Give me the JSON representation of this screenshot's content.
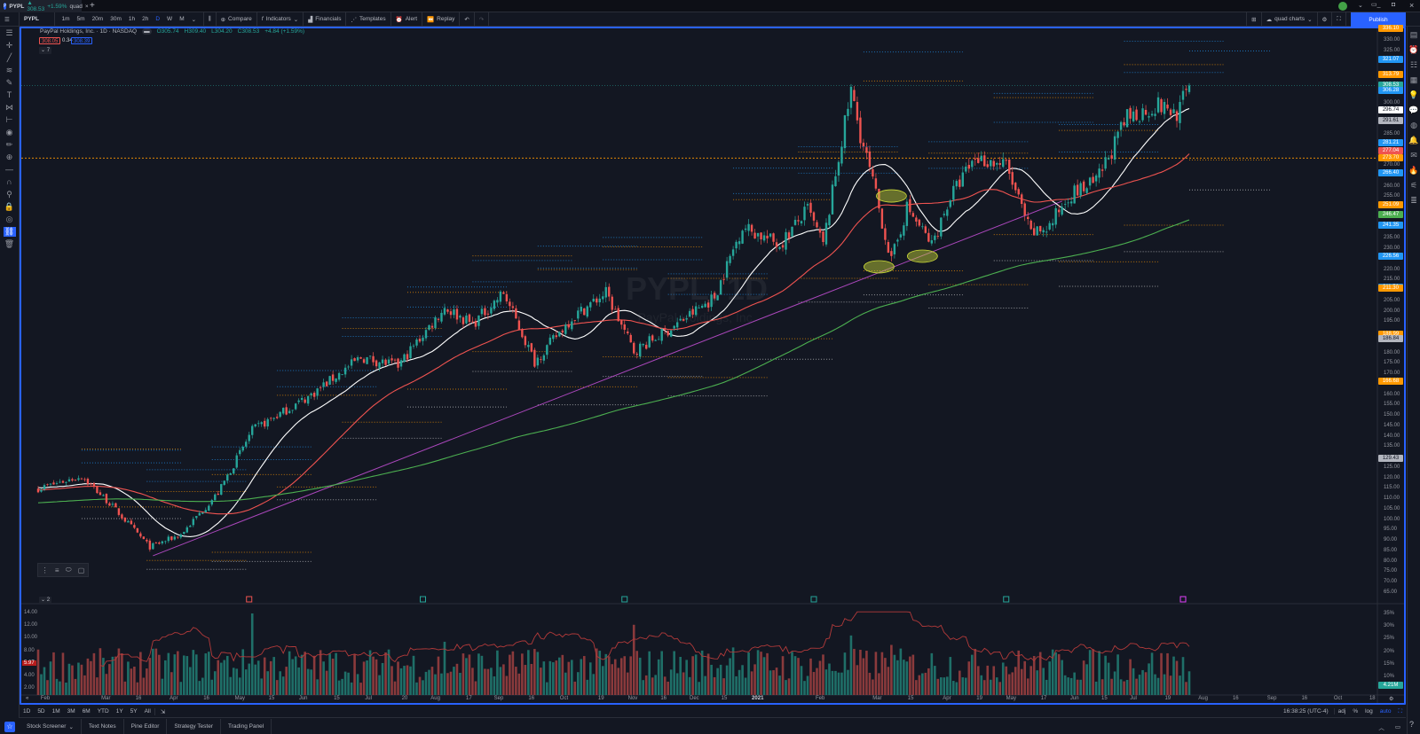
{
  "tab": {
    "symbol": "PYPL",
    "price": "308.53",
    "change": "+1.59%",
    "layout": "quad"
  },
  "toolbar": {
    "symbol": "PYPL",
    "timeframes": [
      "1m",
      "5m",
      "20m",
      "30m",
      "1h",
      "2h",
      "D",
      "W",
      "M"
    ],
    "compare": "Compare",
    "indicators": "Indicators",
    "financials": "Financials",
    "templates": "Templates",
    "alert": "Alert",
    "replay": "Replay",
    "layout_name": "quad charts",
    "publish": "Publish"
  },
  "legend": {
    "title": "PayPal Holdings, Inc. · 1D · NASDAQ",
    "o": "O305.74",
    "h": "H309.40",
    "l": "L304.20",
    "c": "C308.53",
    "chg": "+4.84 (+1.59%)",
    "bid": "308.05",
    "spread": "0.34",
    "ask": "308.39",
    "indicators_toggle": "⌄ 7",
    "volume_toggle": "⌄ 2"
  },
  "watermark": {
    "symbol": "PYPL, 1D",
    "name": "PayPal Holdings, Inc."
  },
  "price_axis": {
    "ticks": [
      "335.00",
      "330.00",
      "325.00",
      "320.00",
      "315.00",
      "310.00",
      "305.00",
      "300.00",
      "295.00",
      "290.00",
      "285.00",
      "280.00",
      "275.00",
      "270.00",
      "265.00",
      "260.00",
      "255.00",
      "250.00",
      "245.00",
      "240.00",
      "235.00",
      "230.00",
      "225.00",
      "220.00",
      "215.00",
      "210.00",
      "205.00",
      "200.00",
      "195.00",
      "190.00",
      "185.00",
      "180.00",
      "175.00",
      "170.00",
      "165.00",
      "160.00",
      "155.00",
      "150.00",
      "145.00",
      "140.00",
      "135.00",
      "130.00",
      "125.00",
      "120.00",
      "115.00",
      "110.00",
      "105.00",
      "100.00",
      "95.00",
      "90.00",
      "85.00",
      "80.00",
      "75.00",
      "70.00",
      "65.00"
    ],
    "badges": [
      {
        "text": "336.10",
        "color": "#ff9800"
      },
      {
        "text": "321.07",
        "color": "#2196f3"
      },
      {
        "text": "313.79",
        "color": "#ff9800"
      },
      {
        "text": "308.53",
        "color": "#26a69a"
      },
      {
        "text": "306.28",
        "color": "#2196f3"
      },
      {
        "text": "296.74",
        "color": "#ffffff"
      },
      {
        "text": "291.61",
        "color": "#b2b5be"
      },
      {
        "text": "281.21",
        "color": "#2196f3"
      },
      {
        "text": "277.04",
        "color": "#ef5350"
      },
      {
        "text": "273.70",
        "color": "#ff9800"
      },
      {
        "text": "266.40",
        "color": "#2196f3"
      },
      {
        "text": "251.09",
        "color": "#ff9800"
      },
      {
        "text": "246.47",
        "color": "#4caf50"
      },
      {
        "text": "241.35",
        "color": "#2196f3"
      },
      {
        "text": "226.56",
        "color": "#2196f3"
      },
      {
        "text": "211.76",
        "color": "#2196f3"
      },
      {
        "text": "211.30",
        "color": "#ff9800"
      },
      {
        "text": "188.99",
        "color": "#ff9800"
      },
      {
        "text": "186.84",
        "color": "#b2b5be"
      },
      {
        "text": "166.68",
        "color": "#ff9800"
      },
      {
        "text": "129.43",
        "color": "#b2b5be"
      }
    ]
  },
  "volume_axis": {
    "left_ticks": [
      "14.00",
      "12.00",
      "10.00",
      "8.00",
      "4.00",
      "2.00"
    ],
    "left_badge": "5.97",
    "right_ticks": [
      "35%",
      "30%",
      "25%",
      "20%",
      "15%",
      "10%"
    ],
    "right_badge": "4.21M"
  },
  "date_axis": [
    "Feb",
    "Mar",
    "16",
    "Apr",
    "16",
    "May",
    "15",
    "Jun",
    "15",
    "Jul",
    "20",
    "Aug",
    "17",
    "Sep",
    "16",
    "Oct",
    "19",
    "Nov",
    "16",
    "Dec",
    "15",
    "2021",
    "Feb",
    "Mar",
    "15",
    "Apr",
    "19",
    "May",
    "17",
    "Jun",
    "15",
    "Jul",
    "19",
    "Aug",
    "16",
    "Sep",
    "16",
    "Oct",
    "18"
  ],
  "range_bar": {
    "ranges": [
      "1D",
      "5D",
      "1M",
      "3M",
      "6M",
      "YTD",
      "1Y",
      "5Y",
      "All"
    ],
    "clock": "16:38:25 (UTC-4)",
    "adj": "adj",
    "pct": "%",
    "log": "log",
    "auto": "auto"
  },
  "bottom_tabs": [
    "Stock Screener",
    "Text Notes",
    "Pine Editor",
    "Strategy Tester",
    "Trading Panel"
  ],
  "chart_data": {
    "type": "candlestick",
    "symbol": "PYPL",
    "interval": "1D",
    "bars": 372,
    "close_keypoints": [
      [
        0,
        115
      ],
      [
        14,
        121
      ],
      [
        23,
        108
      ],
      [
        36,
        87
      ],
      [
        46,
        93
      ],
      [
        58,
        113
      ],
      [
        69,
        143
      ],
      [
        87,
        159
      ],
      [
        104,
        178
      ],
      [
        116,
        174
      ],
      [
        131,
        202
      ],
      [
        140,
        194
      ],
      [
        150,
        209
      ],
      [
        160,
        176
      ],
      [
        172,
        197
      ],
      [
        183,
        209
      ],
      [
        192,
        181
      ],
      [
        204,
        192
      ],
      [
        218,
        207
      ],
      [
        227,
        241
      ],
      [
        239,
        232
      ],
      [
        248,
        249
      ],
      [
        253,
        232
      ],
      [
        258,
        274
      ],
      [
        262,
        306
      ],
      [
        265,
        285
      ],
      [
        269,
        262
      ],
      [
        275,
        224
      ],
      [
        280,
        250
      ],
      [
        288,
        232
      ],
      [
        294,
        255
      ],
      [
        302,
        274
      ],
      [
        312,
        270
      ],
      [
        320,
        237
      ],
      [
        326,
        241
      ],
      [
        332,
        256
      ],
      [
        341,
        262
      ],
      [
        351,
        293
      ],
      [
        361,
        299
      ],
      [
        367,
        295
      ],
      [
        371,
        308.53
      ]
    ],
    "moving_averages": [
      {
        "name": "SMA 20",
        "color": "#ffffff"
      },
      {
        "name": "SMA 50",
        "color": "#ef5350"
      },
      {
        "name": "SMA 200",
        "color": "#4caf50"
      }
    ],
    "trendline": {
      "color": "#ab47bc",
      "from": [
        37,
        82.8
      ],
      "to": [
        330,
        253
      ]
    },
    "horizontal_line": {
      "price": 273.7,
      "color": "#ff9800"
    },
    "highlights": [
      [
        275,
        255.5
      ],
      [
        271,
        221.5
      ],
      [
        285,
        226.6
      ]
    ],
    "volume_spikes": [
      [
        69,
        14
      ],
      [
        192,
        12.2
      ],
      [
        262,
        10.5
      ],
      [
        131,
        9.5
      ],
      [
        275,
        9
      ],
      [
        224,
        8.6
      ]
    ],
    "price_range": [
      62,
      338
    ],
    "volume_range_m": [
      0,
      14
    ],
    "events": [
      {
        "bar": 68,
        "color": "#ef5350"
      },
      {
        "bar": 124,
        "color": "#26a69a"
      },
      {
        "bar": 189,
        "color": "#26a69a"
      },
      {
        "bar": 250,
        "color": "#26a69a"
      },
      {
        "bar": 312,
        "color": "#26a69a"
      },
      {
        "bar": 369,
        "color": "#e040fb"
      }
    ]
  }
}
